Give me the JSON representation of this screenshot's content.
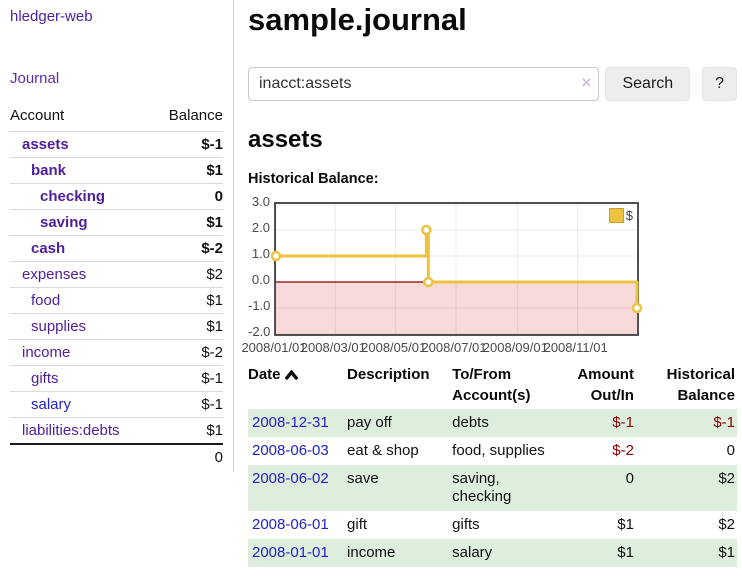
{
  "sidebar": {
    "brand": "hledger-web",
    "journal_link": "Journal",
    "columns": {
      "account": "Account",
      "balance": "Balance"
    },
    "accounts": [
      {
        "name": "assets",
        "depth": 0,
        "balance": "$-1",
        "emph": true,
        "balance_tone": "neg-strong",
        "link_tone": "purple"
      },
      {
        "name": "bank",
        "depth": 1,
        "balance": "$1",
        "emph": true,
        "balance_tone": "plain",
        "link_tone": "purple"
      },
      {
        "name": "checking",
        "depth": 2,
        "balance": "0",
        "emph": true,
        "balance_tone": "plain",
        "link_tone": "purple"
      },
      {
        "name": "saving",
        "depth": 2,
        "balance": "$1",
        "emph": true,
        "balance_tone": "plain",
        "link_tone": "purple"
      },
      {
        "name": "cash",
        "depth": 1,
        "balance": "$-2",
        "emph": true,
        "balance_tone": "neg-strong",
        "link_tone": "purple"
      },
      {
        "name": "expenses",
        "depth": 0,
        "balance": "$2",
        "emph": false,
        "balance_tone": "plain",
        "link_tone": "purple"
      },
      {
        "name": "food",
        "depth": 1,
        "balance": "$1",
        "emph": false,
        "balance_tone": "plain",
        "link_tone": "purple"
      },
      {
        "name": "supplies",
        "depth": 1,
        "balance": "$1",
        "emph": false,
        "balance_tone": "plain",
        "link_tone": "purple"
      },
      {
        "name": "income",
        "depth": 0,
        "balance": "$-2",
        "emph": false,
        "balance_tone": "neg-muted",
        "link_tone": "purple"
      },
      {
        "name": "gifts",
        "depth": 1,
        "balance": "$-1",
        "emph": false,
        "balance_tone": "neg-muted",
        "link_tone": "purple"
      },
      {
        "name": "salary",
        "depth": 1,
        "balance": "$-1",
        "emph": false,
        "balance_tone": "neg-muted",
        "link_tone": "blue"
      },
      {
        "name": "liabilities:debts",
        "depth": 0,
        "balance": "$1",
        "emph": false,
        "balance_tone": "plain",
        "link_tone": "purple"
      }
    ],
    "total": "0"
  },
  "header": {
    "title": "sample.journal"
  },
  "search": {
    "value": "inacct:assets",
    "clear_icon": "×",
    "button_label": "Search",
    "help_label": "?"
  },
  "account_view": {
    "heading": "assets",
    "chart_title": "Historical Balance:"
  },
  "chart_data": {
    "type": "line",
    "steps": true,
    "title": "Historical Balance:",
    "series": [
      {
        "name": "$",
        "color": "#edc240",
        "points": [
          {
            "date": "2008-01-01",
            "value": 1
          },
          {
            "date": "2008-06-01",
            "value": 2
          },
          {
            "date": "2008-06-03",
            "value": 0
          },
          {
            "date": "2008-12-31",
            "value": -1
          }
        ]
      }
    ],
    "x_range": [
      "2008-01-01",
      "2008-12-31"
    ],
    "ylim": [
      -2,
      3
    ],
    "y_ticks": [
      3.0,
      2.0,
      1.0,
      0.0,
      -1.0,
      -2.0
    ],
    "x_ticks": [
      {
        "label": "2008/01/01",
        "date": "2008-01-01"
      },
      {
        "label": "2008/03/01",
        "date": "2008-03-01"
      },
      {
        "label": "2008/05/01",
        "date": "2008-05-01"
      },
      {
        "label": "2008/07/01",
        "date": "2008-07-01"
      },
      {
        "label": "2008/09/01",
        "date": "2008-09-01"
      },
      {
        "label": "2008/11/01",
        "date": "2008-11-01"
      }
    ],
    "legend_position": "top-right",
    "grid": true,
    "colors": {
      "negative_region": "#f9dada",
      "zero_line": "#8b0000",
      "grid": "rgba(0,0,0,0.08)",
      "marker_fill": "#ffffff"
    }
  },
  "register": {
    "sort_icon": "chevron-up",
    "columns": [
      {
        "lines": [
          "Date"
        ],
        "align": "left",
        "sorted_asc": true
      },
      {
        "lines": [
          "Description"
        ],
        "align": "left"
      },
      {
        "lines": [
          "To/From",
          "Account(s)"
        ],
        "align": "left"
      },
      {
        "lines": [
          "Amount",
          "Out/In"
        ],
        "align": "right"
      },
      {
        "lines": [
          "Historical",
          "Balance"
        ],
        "align": "right"
      }
    ],
    "rows": [
      {
        "date": "2008-12-31",
        "description": "pay off",
        "accounts": "debts",
        "amount": "$-1",
        "amount_neg": true,
        "balance": "$-1",
        "balance_neg": true
      },
      {
        "date": "2008-06-03",
        "description": "eat & shop",
        "accounts": "food, supplies",
        "amount": "$-2",
        "amount_neg": true,
        "balance": "0",
        "balance_neg": false
      },
      {
        "date": "2008-06-02",
        "description": "save",
        "accounts": "saving, checking",
        "amount": "0",
        "amount_neg": false,
        "balance": "$2",
        "balance_neg": false
      },
      {
        "date": "2008-06-01",
        "description": "gift",
        "accounts": "gifts",
        "amount": "$1",
        "amount_neg": false,
        "balance": "$2",
        "balance_neg": false
      },
      {
        "date": "2008-01-01",
        "description": "income",
        "accounts": "salary",
        "amount": "$1",
        "amount_neg": false,
        "balance": "$1",
        "balance_neg": false
      }
    ]
  }
}
